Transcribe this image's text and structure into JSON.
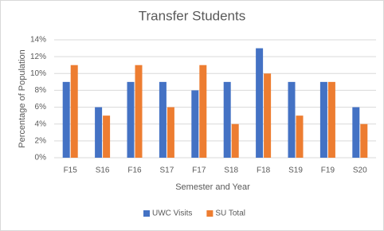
{
  "chart_data": {
    "type": "bar",
    "title": "Transfer Students",
    "x_label": "Semester and Year",
    "y_label": "Percentage of Population",
    "categories": [
      "F15",
      "S16",
      "F16",
      "S17",
      "F17",
      "S18",
      "F18",
      "S19",
      "F19",
      "S20"
    ],
    "series": [
      {
        "name": "UWC Visits",
        "color": "#4472c4",
        "values": [
          9,
          6,
          9,
          9,
          8,
          9,
          13,
          9,
          9,
          6
        ]
      },
      {
        "name": "SU Total",
        "color": "#ed7d31",
        "values": [
          11,
          5,
          11,
          6,
          11,
          4,
          10,
          5,
          9,
          4
        ]
      }
    ],
    "ylim": [
      0,
      14
    ],
    "yticks": [
      {
        "value": 0,
        "label": "0%"
      },
      {
        "value": 2,
        "label": "2%"
      },
      {
        "value": 4,
        "label": "4%"
      },
      {
        "value": 6,
        "label": "6%"
      },
      {
        "value": 8,
        "label": "8%"
      },
      {
        "value": 10,
        "label": "10%"
      },
      {
        "value": 12,
        "label": "12%"
      },
      {
        "value": 14,
        "label": "14%"
      }
    ],
    "grid": true,
    "legend": "bottom"
  }
}
